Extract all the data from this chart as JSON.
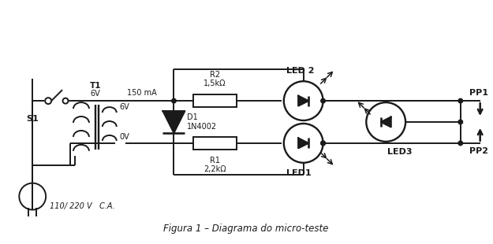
{
  "bg_color": "#ffffff",
  "line_color": "#1a1a1a",
  "title": "Figura 1 – Diagrama do micro-teste",
  "t1_label": "T1\n6V\n150 mA",
  "s1_label": "S1",
  "d1_label": "D1\n1N4002",
  "r1_label": "R1\n2,2kΩ",
  "r2_label": "R2\n1,5kΩ",
  "led1_label": "LED1",
  "led2_label": "LED 2",
  "led3_label": "LED3",
  "pp1_label": "PP1",
  "pp2_label": "PP2",
  "v6_label": "6V",
  "v0_label": "0V",
  "ac_label": "110/ 220 V   C.A.",
  "mA_label": "150 mA"
}
